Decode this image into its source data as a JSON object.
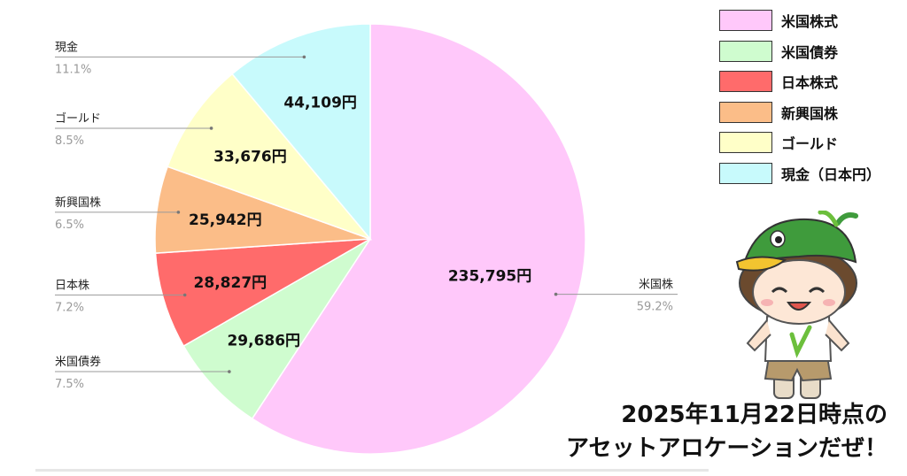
{
  "chart_data": {
    "type": "pie",
    "slices": [
      {
        "name": "米国株",
        "value": 235795,
        "value_label": "235,795円",
        "pct_label": "59.2%",
        "color": "#ffc8fa"
      },
      {
        "name": "米国債券",
        "value": 29686,
        "value_label": "29,686円",
        "pct_label": "7.5%",
        "color": "#cffccf"
      },
      {
        "name": "日本株",
        "value": 28827,
        "value_label": "28,827円",
        "pct_label": "7.2%",
        "color": "#ff6b6b"
      },
      {
        "name": "新興国株",
        "value": 25942,
        "value_label": "25,942円",
        "pct_label": "6.5%",
        "color": "#fbbd88"
      },
      {
        "name": "ゴールド",
        "value": 33676,
        "value_label": "33,676円",
        "pct_label": "8.5%",
        "color": "#ffffc8"
      },
      {
        "name": "現金",
        "value": 44109,
        "value_label": "44,109円",
        "pct_label": "11.1%",
        "color": "#c8fafc"
      }
    ],
    "start": "12 o'clock",
    "direction": "clockwise"
  },
  "legend": [
    {
      "label": "米国株式",
      "color": "#ffc8fa"
    },
    {
      "label": "米国債券",
      "color": "#cffccf"
    },
    {
      "label": "日本株式",
      "color": "#ff6b6b"
    },
    {
      "label": "新興国株",
      "color": "#fbbd88"
    },
    {
      "label": "ゴールド",
      "color": "#ffffc8"
    },
    {
      "label": "現金（日本円）",
      "color": "#c8fafc"
    }
  ],
  "caption": {
    "line1": "2025年11月22日時点の",
    "line2": "アセットアロケーションだぜ！"
  },
  "mascot": "cartoon-character-with-green-duck-hat"
}
